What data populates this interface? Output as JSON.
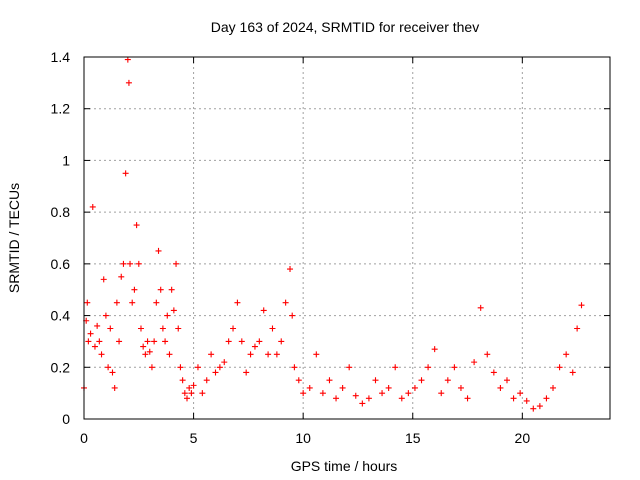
{
  "chart_data": {
    "type": "scatter",
    "title": "Day 163 of 2024, SRMTID for receiver thev",
    "xlabel": "GPS time / hours",
    "ylabel": "SRMTID / TECUs",
    "xlim": [
      0,
      24
    ],
    "ylim": [
      0,
      1.4
    ],
    "xticks": [
      0,
      5,
      10,
      15,
      20
    ],
    "xtick_labels": [
      "0",
      "5",
      "10",
      "15",
      "20"
    ],
    "yticks": [
      0,
      0.2,
      0.4,
      0.6,
      0.8,
      1.0,
      1.2,
      1.4
    ],
    "ytick_labels": [
      "0",
      "0.2",
      "0.4",
      "0.6",
      "0.8",
      "1",
      "1.2",
      "1.4"
    ],
    "grid": true,
    "marker": "+",
    "color": "#ff0000",
    "series": [
      {
        "name": "SRMTID",
        "x": [
          0.0,
          0.1,
          0.15,
          0.2,
          0.3,
          0.4,
          0.5,
          0.6,
          0.7,
          0.8,
          0.9,
          1.0,
          1.1,
          1.2,
          1.3,
          1.4,
          1.5,
          1.6,
          1.7,
          1.8,
          1.9,
          2.0,
          2.05,
          2.1,
          2.2,
          2.3,
          2.4,
          2.5,
          2.6,
          2.7,
          2.8,
          2.9,
          3.0,
          3.1,
          3.2,
          3.3,
          3.4,
          3.5,
          3.6,
          3.7,
          3.8,
          3.9,
          4.0,
          4.1,
          4.2,
          4.3,
          4.4,
          4.5,
          4.6,
          4.7,
          4.8,
          4.9,
          5.0,
          5.2,
          5.4,
          5.6,
          5.8,
          6.0,
          6.2,
          6.4,
          6.6,
          6.8,
          7.0,
          7.2,
          7.4,
          7.6,
          7.8,
          8.0,
          8.2,
          8.4,
          8.6,
          8.8,
          9.0,
          9.2,
          9.4,
          9.5,
          9.6,
          9.8,
          10.0,
          10.3,
          10.6,
          10.9,
          11.2,
          11.5,
          11.8,
          12.1,
          12.4,
          12.7,
          13.0,
          13.3,
          13.6,
          13.9,
          14.2,
          14.5,
          14.8,
          15.1,
          15.4,
          15.7,
          16.0,
          16.3,
          16.6,
          16.9,
          17.2,
          17.5,
          17.8,
          18.1,
          18.4,
          18.7,
          19.0,
          19.3,
          19.6,
          19.9,
          20.2,
          20.5,
          20.8,
          21.1,
          21.4,
          21.7,
          22.0,
          22.3,
          22.5,
          22.7
        ],
        "y": [
          0.12,
          0.38,
          0.45,
          0.3,
          0.33,
          0.82,
          0.28,
          0.36,
          0.3,
          0.25,
          0.54,
          0.4,
          0.2,
          0.35,
          0.18,
          0.12,
          0.45,
          0.3,
          0.55,
          0.6,
          0.95,
          1.39,
          1.3,
          0.6,
          0.45,
          0.5,
          0.75,
          0.6,
          0.35,
          0.28,
          0.25,
          0.3,
          0.26,
          0.2,
          0.3,
          0.45,
          0.65,
          0.5,
          0.35,
          0.3,
          0.4,
          0.25,
          0.5,
          0.42,
          0.6,
          0.35,
          0.2,
          0.15,
          0.1,
          0.08,
          0.12,
          0.1,
          0.13,
          0.2,
          0.1,
          0.15,
          0.25,
          0.18,
          0.2,
          0.22,
          0.3,
          0.35,
          0.45,
          0.3,
          0.18,
          0.25,
          0.28,
          0.3,
          0.42,
          0.25,
          0.35,
          0.25,
          0.3,
          0.45,
          0.58,
          0.4,
          0.2,
          0.15,
          0.1,
          0.12,
          0.25,
          0.1,
          0.15,
          0.08,
          0.12,
          0.2,
          0.09,
          0.06,
          0.08,
          0.15,
          0.1,
          0.12,
          0.2,
          0.08,
          0.1,
          0.12,
          0.15,
          0.2,
          0.27,
          0.1,
          0.15,
          0.2,
          0.12,
          0.08,
          0.22,
          0.43,
          0.25,
          0.18,
          0.12,
          0.15,
          0.08,
          0.1,
          0.07,
          0.04,
          0.05,
          0.08,
          0.12,
          0.2,
          0.25,
          0.18,
          0.35,
          0.44
        ]
      }
    ]
  }
}
